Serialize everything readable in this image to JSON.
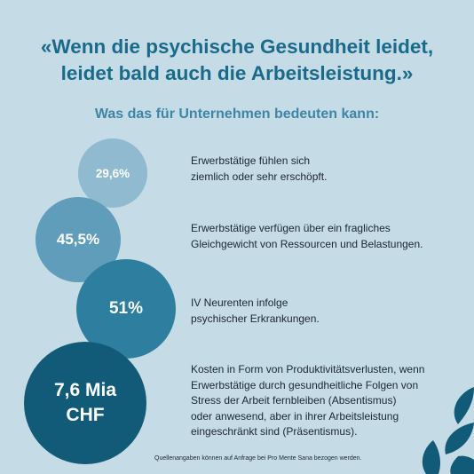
{
  "headline": {
    "line1": "«Wenn die psychische Gesundheit leidet,",
    "line2": "leidet bald auch die Arbeitsleistung.»"
  },
  "subtitle": "Was das für Unternehmen bedeuten kann:",
  "stats": [
    {
      "value": "29,6%",
      "text": "Erwerbstätige fühlen sich\nziemlich oder sehr erschöpft.",
      "color": "#8fbad0"
    },
    {
      "value": "45,5%",
      "text": "Erwerbstätige verfügen über ein fragliches\nGleichgewicht von Ressourcen und Belastungen.",
      "color": "#5f9dbb"
    },
    {
      "value": "51%",
      "text": "IV Neurenten infolge\npsychischer Erkrankungen.",
      "color": "#2e7f9f"
    },
    {
      "value": "7,6 Mia\nCHF",
      "text": "Kosten in Form von Produktivitätsverlusten, wenn\nErwerbstätige durch gesundheitliche Folgen von\nStress der Arbeit fernbleiben (Absentismus)\noder anwesend, aber in ihrer Arbeitsleistung\neingeschränkt sind (Präsentismus).",
      "color": "#115b79"
    }
  ],
  "source": "Quellenangaben können auf Anfrage bei Pro Mente Sana bezogen werden.",
  "colors": {
    "background": "#c5dbe6",
    "headline": "#1a6b8a",
    "subtitle": "#3f86a6",
    "body_text": "#1b2730",
    "decor_leaf": "#115b79"
  },
  "decor": {
    "icon": "leaf-petals-decoration"
  }
}
